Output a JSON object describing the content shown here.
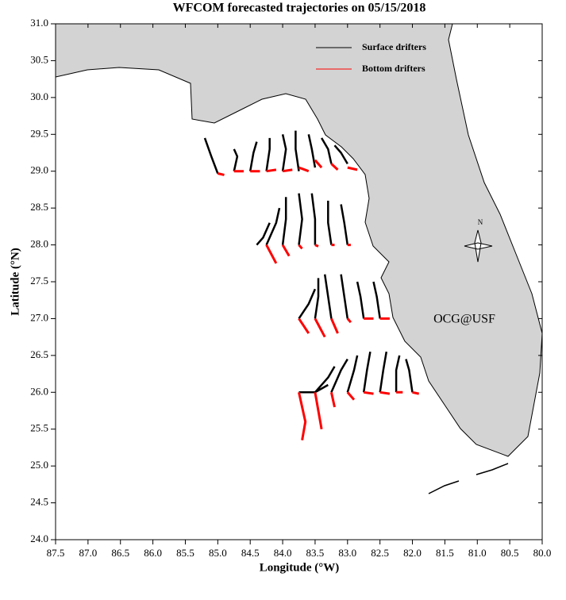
{
  "chart_data": {
    "type": "map-lines",
    "title": "WFCOM forecasted trajectories on 05/15/2018",
    "x_label": "Longitude (°W)",
    "y_label": "Latitude (°N)",
    "annotation": "OCG@USF",
    "annotation_color": "#ff0000",
    "compass_label": "N",
    "legend": "upper right",
    "xlim": [
      87.5,
      80
    ],
    "ylim": [
      24,
      31
    ],
    "xticks": [
      87.5,
      {
        "value": 87,
        "label": "87.0"
      },
      86.5,
      {
        "value": 86,
        "label": "86.0"
      },
      85.5,
      {
        "value": 85,
        "label": "85.0"
      },
      84.5,
      {
        "value": 84,
        "label": "84.0"
      },
      83.5,
      {
        "value": 83,
        "label": "83.0"
      },
      82.5,
      {
        "value": 82,
        "label": "82.0"
      },
      81.5,
      {
        "value": 81,
        "label": "81.0"
      },
      80.5,
      {
        "value": 80,
        "label": "80.0"
      }
    ],
    "yticks": [
      {
        "value": 24,
        "label": "24.0"
      },
      24.5,
      {
        "value": 25,
        "label": "25.0"
      },
      25.5,
      {
        "value": 26,
        "label": "26.0"
      },
      26.5,
      {
        "value": 27,
        "label": "27.0"
      },
      27.5,
      {
        "value": 28,
        "label": "28.0"
      },
      28.5,
      {
        "value": 29,
        "label": "29.0"
      },
      29.5,
      {
        "value": 30,
        "label": "30.0"
      },
      30.5,
      {
        "value": 31,
        "label": "31.0"
      }
    ],
    "series": [
      {
        "name": "Surface drifters",
        "color": "#000000",
        "x": [
          85.0,
          85.1,
          85.2,
          null,
          84.75,
          84.7,
          84.75,
          null,
          84.5,
          84.45,
          84.4,
          null,
          84.25,
          84.2,
          84.2,
          null,
          84.0,
          83.95,
          84.0,
          null,
          83.75,
          83.8,
          83.8,
          null,
          83.5,
          83.55,
          83.6,
          null,
          83.25,
          83.3,
          83.4,
          null,
          83.0,
          83.1,
          83.2,
          null,
          84.4,
          84.3,
          84.2,
          null,
          84.25,
          84.1,
          84.05,
          null,
          84.0,
          83.95,
          83.95,
          null,
          83.75,
          83.7,
          83.75,
          null,
          83.5,
          83.5,
          83.55,
          null,
          83.25,
          83.3,
          83.3,
          null,
          83.0,
          83.05,
          83.1,
          null,
          83.75,
          83.6,
          83.5,
          null,
          83.5,
          83.45,
          83.45,
          null,
          83.25,
          83.3,
          83.35,
          null,
          83.0,
          83.05,
          83.1,
          null,
          82.75,
          82.8,
          82.85,
          null,
          82.5,
          82.55,
          82.6,
          null,
          83.75,
          83.5,
          83.3,
          null,
          83.5,
          83.3,
          83.2,
          null,
          83.25,
          83.1,
          83.0,
          null,
          83.0,
          82.9,
          82.85,
          null,
          82.75,
          82.7,
          82.65,
          null,
          82.5,
          82.45,
          82.4,
          null,
          82.25,
          82.25,
          82.2,
          null,
          82.0,
          82.05,
          82.1
        ],
        "values": [
          28.97,
          29.2,
          29.45,
          null,
          29.0,
          29.2,
          29.3,
          null,
          29.0,
          29.25,
          29.4,
          null,
          29.0,
          29.3,
          29.45,
          null,
          29.0,
          29.3,
          29.5,
          null,
          29.0,
          29.3,
          29.55,
          null,
          29.05,
          29.3,
          29.5,
          null,
          29.1,
          29.3,
          29.45,
          null,
          29.1,
          29.25,
          29.35,
          null,
          28.0,
          28.1,
          28.3,
          null,
          28.0,
          28.3,
          28.5,
          null,
          28.0,
          28.35,
          28.65,
          null,
          28.0,
          28.35,
          28.7,
          null,
          28.0,
          28.35,
          28.7,
          null,
          28.0,
          28.3,
          28.6,
          null,
          28.0,
          28.3,
          28.55,
          null,
          27.0,
          27.2,
          27.4,
          null,
          27.0,
          27.3,
          27.55,
          null,
          27.0,
          27.3,
          27.6,
          null,
          27.0,
          27.3,
          27.6,
          null,
          27.0,
          27.3,
          27.5,
          null,
          27.0,
          27.3,
          27.5,
          null,
          26.0,
          26.0,
          26.1,
          null,
          26.0,
          26.2,
          26.35,
          null,
          26.0,
          26.3,
          26.45,
          null,
          26.0,
          26.3,
          26.5,
          null,
          26.0,
          26.3,
          26.55,
          null,
          26.0,
          26.3,
          26.55,
          null,
          26.0,
          26.3,
          26.5,
          null,
          26.0,
          26.3,
          26.45
        ]
      },
      {
        "name": "Bottom drifters",
        "color": "#ff0000",
        "x": [
          85.0,
          84.9,
          null,
          84.75,
          84.6,
          null,
          84.5,
          84.35,
          null,
          84.25,
          84.1,
          null,
          84.0,
          83.85,
          null,
          83.75,
          83.6,
          null,
          83.5,
          83.4,
          null,
          83.25,
          83.15,
          null,
          83.0,
          82.85,
          null,
          84.25,
          84.1,
          null,
          84.0,
          83.9,
          null,
          83.75,
          83.7,
          null,
          83.5,
          83.45,
          null,
          83.25,
          83.2,
          null,
          83.0,
          82.95,
          null,
          83.75,
          83.6,
          null,
          83.5,
          83.35,
          null,
          83.25,
          83.15,
          null,
          83.0,
          82.95,
          null,
          82.75,
          82.6,
          null,
          82.5,
          82.35,
          null,
          83.75,
          83.65,
          83.7,
          null,
          83.5,
          83.45,
          83.4,
          null,
          83.25,
          83.2,
          null,
          83.0,
          82.9,
          null,
          82.75,
          82.6,
          null,
          82.5,
          82.35,
          null,
          82.25,
          82.15,
          null,
          82.0,
          81.9
        ],
        "values": [
          28.97,
          28.95,
          null,
          29.0,
          29.0,
          null,
          29.0,
          29.0,
          null,
          29.0,
          29.02,
          null,
          29.0,
          29.02,
          null,
          29.05,
          29.0,
          null,
          29.15,
          29.05,
          null,
          29.1,
          29.02,
          null,
          29.05,
          29.02,
          null,
          28.0,
          27.75,
          null,
          28.0,
          27.85,
          null,
          28.0,
          27.95,
          null,
          28.0,
          27.98,
          null,
          28.0,
          28.0,
          null,
          28.0,
          28.0,
          null,
          27.0,
          26.8,
          null,
          27.0,
          26.75,
          null,
          27.0,
          26.8,
          null,
          27.0,
          26.95,
          null,
          27.0,
          27.0,
          null,
          27.0,
          27.0,
          null,
          26.0,
          25.6,
          25.35,
          null,
          26.0,
          25.75,
          25.5,
          null,
          26.0,
          25.8,
          null,
          26.0,
          25.9,
          null,
          26.0,
          25.98,
          null,
          26.0,
          25.98,
          null,
          26.0,
          26.0,
          null,
          26.0,
          25.98
        ]
      }
    ]
  }
}
